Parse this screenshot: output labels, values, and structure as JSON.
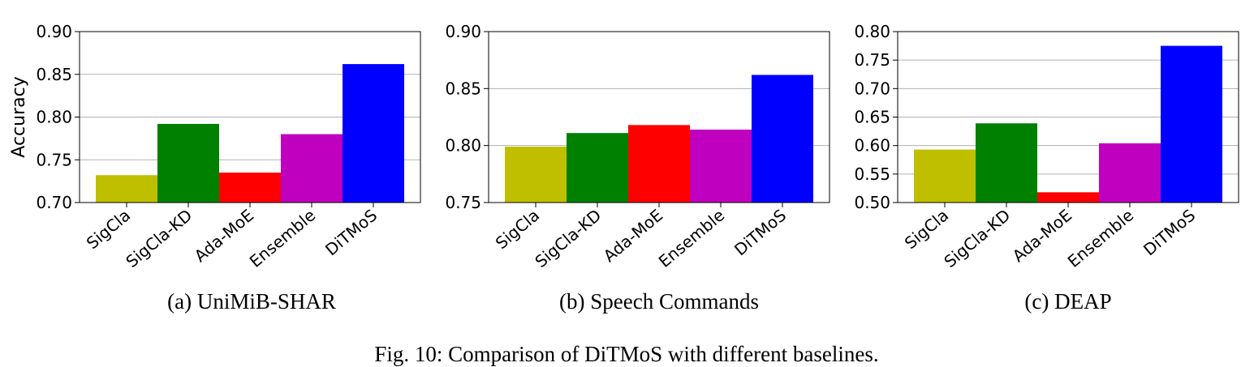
{
  "figure": {
    "caption": "Fig. 10: Comparison of DiTMoS with different baselines."
  },
  "chart_data": [
    {
      "type": "bar",
      "title": "(a) UniMiB-SHAR",
      "ylabel": "Accuracy",
      "xlabel": "",
      "categories": [
        "SigCla",
        "SigCla-KD",
        "Ada-MoE",
        "Ensemble",
        "DiTMoS"
      ],
      "values": [
        0.732,
        0.792,
        0.735,
        0.78,
        0.862
      ],
      "colors": [
        "#bfbf00",
        "#008000",
        "#ff0000",
        "#bf00bf",
        "#0000ff"
      ],
      "ylim": [
        0.7,
        0.9
      ],
      "yticks": [
        "0.70",
        "0.75",
        "0.80",
        "0.85",
        "0.90"
      ],
      "grid": true
    },
    {
      "type": "bar",
      "title": "(b) Speech Commands",
      "ylabel": "",
      "xlabel": "",
      "categories": [
        "SigCla",
        "SigCla-KD",
        "Ada-MoE",
        "Ensemble",
        "DiTMoS"
      ],
      "values": [
        0.799,
        0.811,
        0.818,
        0.814,
        0.862
      ],
      "colors": [
        "#bfbf00",
        "#008000",
        "#ff0000",
        "#bf00bf",
        "#0000ff"
      ],
      "ylim": [
        0.75,
        0.9
      ],
      "yticks": [
        "0.75",
        "0.80",
        "0.85",
        "0.90"
      ],
      "grid": true
    },
    {
      "type": "bar",
      "title": "(c) DEAP",
      "ylabel": "",
      "xlabel": "",
      "categories": [
        "SigCla",
        "SigCla-KD",
        "Ada-MoE",
        "Ensemble",
        "DiTMoS"
      ],
      "values": [
        0.593,
        0.639,
        0.518,
        0.604,
        0.775
      ],
      "colors": [
        "#bfbf00",
        "#008000",
        "#ff0000",
        "#bf00bf",
        "#0000ff"
      ],
      "ylim": [
        0.5,
        0.8
      ],
      "yticks": [
        "0.50",
        "0.55",
        "0.60",
        "0.65",
        "0.70",
        "0.75",
        "0.80"
      ],
      "grid": true
    }
  ]
}
